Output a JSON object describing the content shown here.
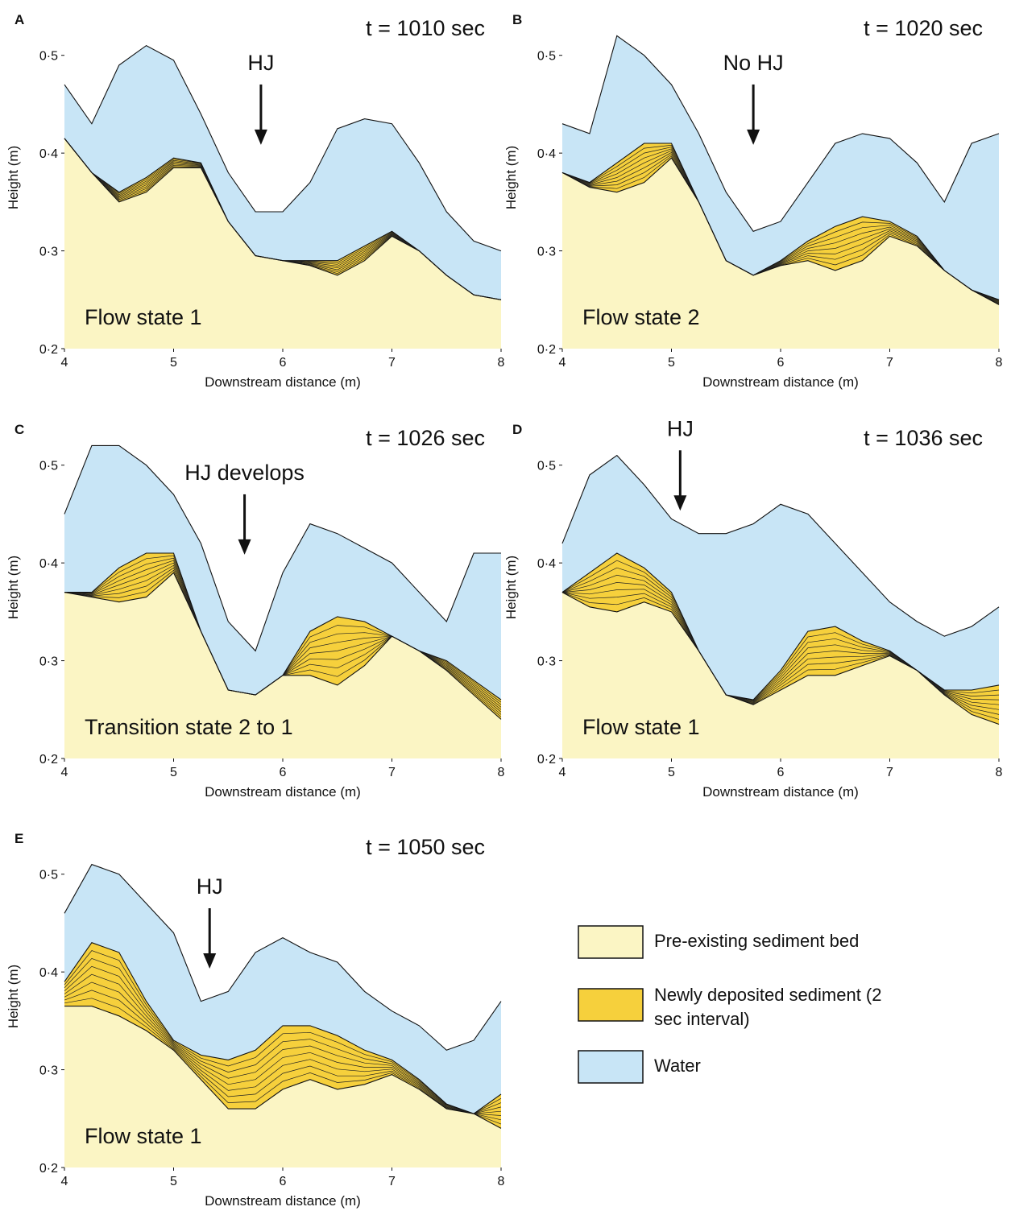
{
  "chart_data": [
    {
      "type": "area",
      "panel": "A",
      "time_label": "t = 1010 sec",
      "state_label": "Flow state 1",
      "xlabel": "Downstream distance (m)",
      "ylabel": "Height (m)",
      "annotation": {
        "text": "HJ",
        "x": 5.8,
        "y": 0.485
      },
      "x": [
        4,
        4.25,
        4.5,
        4.75,
        5,
        5.25,
        5.5,
        5.75,
        6,
        6.25,
        6.5,
        6.75,
        7,
        7.25,
        7.5,
        7.75,
        8
      ],
      "water_surface": [
        0.47,
        0.43,
        0.49,
        0.51,
        0.495,
        0.44,
        0.38,
        0.34,
        0.34,
        0.37,
        0.425,
        0.435,
        0.43,
        0.39,
        0.34,
        0.31,
        0.3
      ],
      "deposit_top": [
        0.415,
        0.38,
        0.36,
        0.375,
        0.395,
        0.39,
        0.33,
        0.295,
        0.29,
        0.29,
        0.29,
        0.305,
        0.32,
        0.3,
        0.275,
        0.255,
        0.25
      ],
      "bed": [
        0.415,
        0.38,
        0.35,
        0.36,
        0.385,
        0.385,
        0.33,
        0.295,
        0.29,
        0.285,
        0.275,
        0.29,
        0.315,
        0.3,
        0.275,
        0.255,
        0.25
      ],
      "xlim": [
        4,
        8
      ],
      "ylim": [
        0.2,
        0.55
      ],
      "xticks": [
        4,
        5,
        6,
        7,
        8
      ],
      "yticks": [
        {
          "value": 0.2,
          "label": "0·2"
        },
        {
          "value": 0.3,
          "label": "0·3"
        },
        {
          "value": 0.4,
          "label": "0·4"
        },
        {
          "value": 0.5,
          "label": "0·5"
        }
      ]
    },
    {
      "type": "area",
      "panel": "B",
      "time_label": "t = 1020 sec",
      "state_label": "Flow state 2",
      "xlabel": "Downstream distance (m)",
      "ylabel": "Height (m)",
      "annotation": {
        "text": "No HJ",
        "x": 5.75,
        "y": 0.485
      },
      "x": [
        4,
        4.25,
        4.5,
        4.75,
        5,
        5.25,
        5.5,
        5.75,
        6,
        6.25,
        6.5,
        6.75,
        7,
        7.25,
        7.5,
        7.75,
        8
      ],
      "water_surface": [
        0.43,
        0.42,
        0.52,
        0.5,
        0.47,
        0.42,
        0.36,
        0.32,
        0.33,
        0.37,
        0.41,
        0.42,
        0.415,
        0.39,
        0.35,
        0.41,
        0.42
      ],
      "deposit_top": [
        0.38,
        0.37,
        0.39,
        0.41,
        0.41,
        0.35,
        0.29,
        0.275,
        0.29,
        0.31,
        0.325,
        0.335,
        0.33,
        0.315,
        0.28,
        0.26,
        0.25
      ],
      "bed": [
        0.38,
        0.365,
        0.36,
        0.37,
        0.395,
        0.35,
        0.29,
        0.275,
        0.285,
        0.29,
        0.28,
        0.29,
        0.315,
        0.305,
        0.28,
        0.26,
        0.245
      ],
      "xlim": [
        4,
        8
      ],
      "ylim": [
        0.2,
        0.55
      ],
      "xticks": [
        4,
        5,
        6,
        7,
        8
      ],
      "yticks": [
        {
          "value": 0.2,
          "label": "0·2"
        },
        {
          "value": 0.3,
          "label": "0·3"
        },
        {
          "value": 0.4,
          "label": "0·4"
        },
        {
          "value": 0.5,
          "label": "0·5"
        }
      ]
    },
    {
      "type": "area",
      "panel": "C",
      "time_label": "t = 1026 sec",
      "state_label": "Transition state 2 to 1",
      "xlabel": "Downstream distance (m)",
      "ylabel": "Height (m)",
      "annotation": {
        "text": "HJ develops",
        "x": 5.65,
        "y": 0.485
      },
      "x": [
        4,
        4.25,
        4.5,
        4.75,
        5,
        5.25,
        5.5,
        5.75,
        6,
        6.25,
        6.5,
        6.75,
        7,
        7.25,
        7.5,
        7.75,
        8
      ],
      "water_surface": [
        0.45,
        0.52,
        0.52,
        0.5,
        0.47,
        0.42,
        0.34,
        0.31,
        0.39,
        0.44,
        0.43,
        0.415,
        0.4,
        0.37,
        0.34,
        0.41,
        0.41
      ],
      "deposit_top": [
        0.37,
        0.37,
        0.395,
        0.41,
        0.41,
        0.33,
        0.27,
        0.265,
        0.285,
        0.33,
        0.345,
        0.34,
        0.325,
        0.31,
        0.3,
        0.28,
        0.26
      ],
      "bed": [
        0.37,
        0.365,
        0.36,
        0.365,
        0.39,
        0.33,
        0.27,
        0.265,
        0.285,
        0.285,
        0.275,
        0.295,
        0.325,
        0.31,
        0.29,
        0.265,
        0.24
      ],
      "xlim": [
        4,
        8
      ],
      "ylim": [
        0.2,
        0.55
      ],
      "xticks": [
        4,
        5,
        6,
        7,
        8
      ],
      "yticks": [
        {
          "value": 0.2,
          "label": "0·2"
        },
        {
          "value": 0.3,
          "label": "0·3"
        },
        {
          "value": 0.4,
          "label": "0·4"
        },
        {
          "value": 0.5,
          "label": "0·5"
        }
      ]
    },
    {
      "type": "area",
      "panel": "D",
      "time_label": "t = 1036 sec",
      "state_label": "Flow state 1",
      "xlabel": "Downstream distance (m)",
      "ylabel": "Height (m)",
      "annotation": {
        "text": "HJ",
        "x": 5.08,
        "y": 0.53
      },
      "x": [
        4,
        4.25,
        4.5,
        4.75,
        5,
        5.25,
        5.5,
        5.75,
        6,
        6.25,
        6.5,
        6.75,
        7,
        7.25,
        7.5,
        7.75,
        8
      ],
      "water_surface": [
        0.42,
        0.49,
        0.51,
        0.48,
        0.445,
        0.43,
        0.43,
        0.44,
        0.46,
        0.45,
        0.42,
        0.39,
        0.36,
        0.34,
        0.325,
        0.335,
        0.355
      ],
      "deposit_top": [
        0.37,
        0.39,
        0.41,
        0.395,
        0.37,
        0.31,
        0.265,
        0.26,
        0.29,
        0.33,
        0.335,
        0.32,
        0.31,
        0.29,
        0.27,
        0.27,
        0.275
      ],
      "bed": [
        0.37,
        0.355,
        0.35,
        0.36,
        0.35,
        0.31,
        0.265,
        0.255,
        0.27,
        0.285,
        0.285,
        0.295,
        0.305,
        0.29,
        0.265,
        0.245,
        0.235
      ],
      "xlim": [
        4,
        8
      ],
      "ylim": [
        0.2,
        0.55
      ],
      "xticks": [
        4,
        5,
        6,
        7,
        8
      ],
      "yticks": [
        {
          "value": 0.2,
          "label": "0·2"
        },
        {
          "value": 0.3,
          "label": "0·3"
        },
        {
          "value": 0.4,
          "label": "0·4"
        },
        {
          "value": 0.5,
          "label": "0·5"
        }
      ]
    },
    {
      "type": "area",
      "panel": "E",
      "time_label": "t = 1050 sec",
      "state_label": "Flow state 1",
      "xlabel": "Downstream distance (m)",
      "ylabel": "Height (m)",
      "annotation": {
        "text": "HJ",
        "x": 5.33,
        "y": 0.48
      },
      "x": [
        4,
        4.25,
        4.5,
        4.75,
        5,
        5.25,
        5.5,
        5.75,
        6,
        6.25,
        6.5,
        6.75,
        7,
        7.25,
        7.5,
        7.75,
        8
      ],
      "water_surface": [
        0.46,
        0.51,
        0.5,
        0.47,
        0.44,
        0.37,
        0.38,
        0.42,
        0.435,
        0.42,
        0.41,
        0.38,
        0.36,
        0.345,
        0.32,
        0.33,
        0.37
      ],
      "deposit_top": [
        0.39,
        0.43,
        0.42,
        0.37,
        0.33,
        0.315,
        0.31,
        0.32,
        0.345,
        0.345,
        0.335,
        0.32,
        0.31,
        0.29,
        0.265,
        0.255,
        0.275
      ],
      "bed": [
        0.365,
        0.365,
        0.355,
        0.34,
        0.32,
        0.29,
        0.26,
        0.26,
        0.28,
        0.29,
        0.28,
        0.285,
        0.295,
        0.28,
        0.26,
        0.255,
        0.24
      ],
      "xlim": [
        4,
        8
      ],
      "ylim": [
        0.2,
        0.55
      ],
      "xticks": [
        4,
        5,
        6,
        7,
        8
      ],
      "yticks": [
        {
          "value": 0.2,
          "label": "0·2"
        },
        {
          "value": 0.3,
          "label": "0·3"
        },
        {
          "value": 0.4,
          "label": "0·4"
        },
        {
          "value": 0.5,
          "label": "0·5"
        }
      ]
    }
  ],
  "legend": {
    "items": [
      {
        "name": "Pre-existing sediment bed",
        "color": "#fbf5c4"
      },
      {
        "name": "Newly deposited sediment (2 sec interval)",
        "color": "#f6d03c"
      },
      {
        "name": "Water",
        "color": "#c8e5f6"
      }
    ]
  }
}
